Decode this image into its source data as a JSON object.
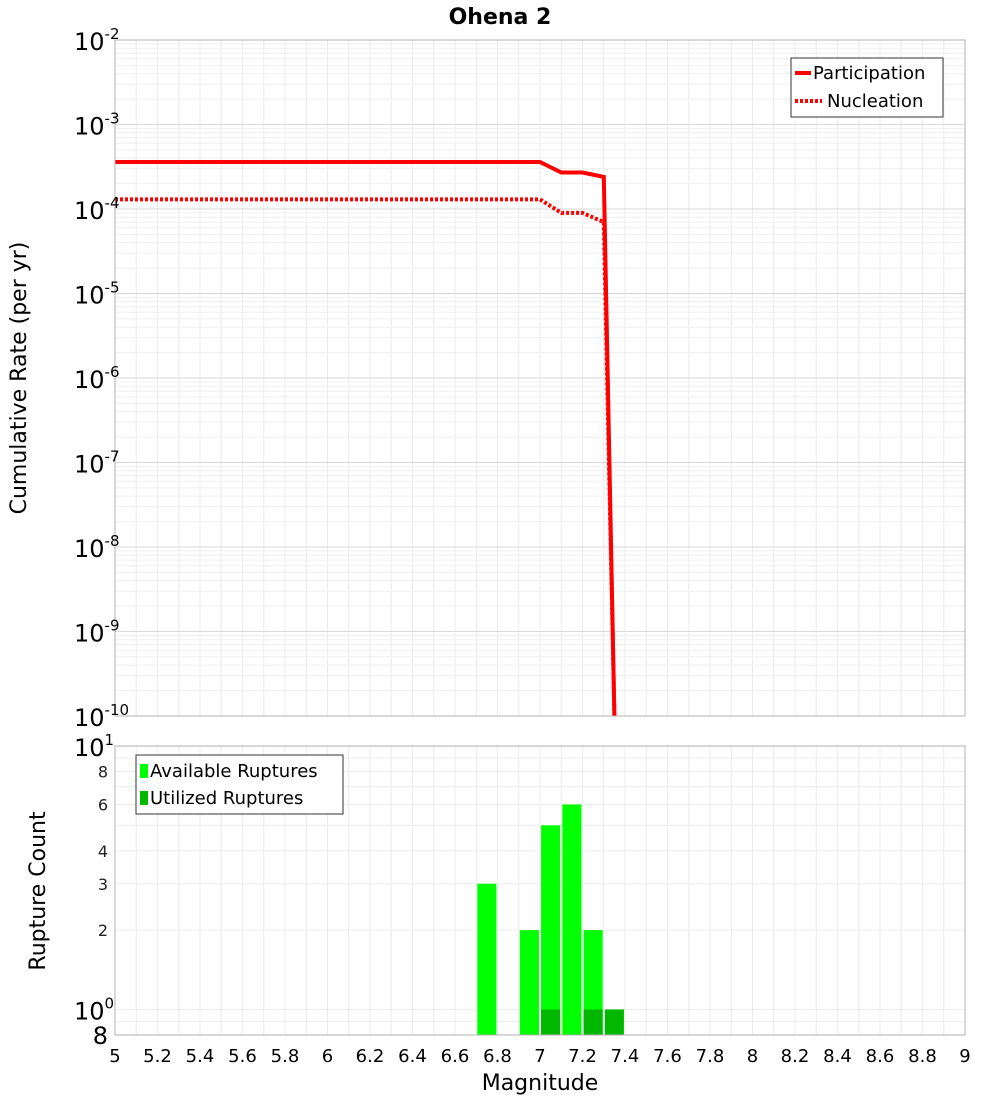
{
  "chart_data": [
    {
      "type": "line",
      "title": "Ohena 2",
      "xlabel": "",
      "ylabel": "Cumulative Rate (per yr)",
      "yscale": "log",
      "xlim": [
        5,
        9
      ],
      "ylim": [
        1e-10,
        0.01
      ],
      "y_tick_labels": [
        {
          "base": "10",
          "exp": "-2"
        },
        {
          "base": "10",
          "exp": "-3"
        },
        {
          "base": "10",
          "exp": "-4"
        },
        {
          "base": "10",
          "exp": "-5"
        },
        {
          "base": "10",
          "exp": "-6"
        },
        {
          "base": "10",
          "exp": "-7"
        },
        {
          "base": "10",
          "exp": "-8"
        },
        {
          "base": "10",
          "exp": "-9"
        },
        {
          "base": "10",
          "exp": "-10"
        }
      ],
      "legend_position": "top-right",
      "series": [
        {
          "name": "Participation",
          "style": "solid",
          "color": "#ff0000",
          "x": [
            5.0,
            7.0,
            7.1,
            7.2,
            7.3,
            7.35
          ],
          "y": [
            0.00036,
            0.00036,
            0.00027,
            0.00027,
            0.00024,
            1e-10
          ]
        },
        {
          "name": "Nucleation",
          "style": "dotted",
          "color": "#ff0000",
          "x": [
            5.0,
            7.0,
            7.1,
            7.2,
            7.3,
            7.35
          ],
          "y": [
            0.00013,
            0.00013,
            9e-05,
            9e-05,
            7e-05,
            1e-10
          ]
        }
      ]
    },
    {
      "type": "bar",
      "title": "",
      "xlabel": "Magnitude",
      "ylabel": "Rupture Count",
      "yscale": "log",
      "xlim": [
        5,
        9
      ],
      "ylim": [
        0.8,
        10
      ],
      "x_ticks": [
        "5",
        "5.2",
        "5.4",
        "5.6",
        "5.8",
        "6",
        "6.2",
        "6.4",
        "6.6",
        "6.8",
        "7",
        "7.2",
        "7.4",
        "7.6",
        "7.8",
        "8",
        "8.2",
        "8.4",
        "8.6",
        "8.8",
        "9"
      ],
      "y_minor_labels": [
        "8",
        "6",
        "4",
        "3",
        "2"
      ],
      "y_major_labels": [
        {
          "base": "10",
          "exp": "1"
        },
        {
          "base": "10",
          "exp": "0"
        }
      ],
      "y_bottom_label": "8",
      "legend_position": "top-left",
      "bar_width": 0.09,
      "series": [
        {
          "name": "Available Ruptures",
          "color": "#00ff00",
          "x": [
            6.75,
            6.95,
            7.05,
            7.15,
            7.25
          ],
          "values": [
            3,
            2,
            5,
            6,
            2
          ]
        },
        {
          "name": "Utilized Ruptures",
          "color": "#00b800",
          "x": [
            7.05,
            7.25,
            7.35
          ],
          "values": [
            1,
            1,
            1
          ]
        }
      ]
    }
  ]
}
